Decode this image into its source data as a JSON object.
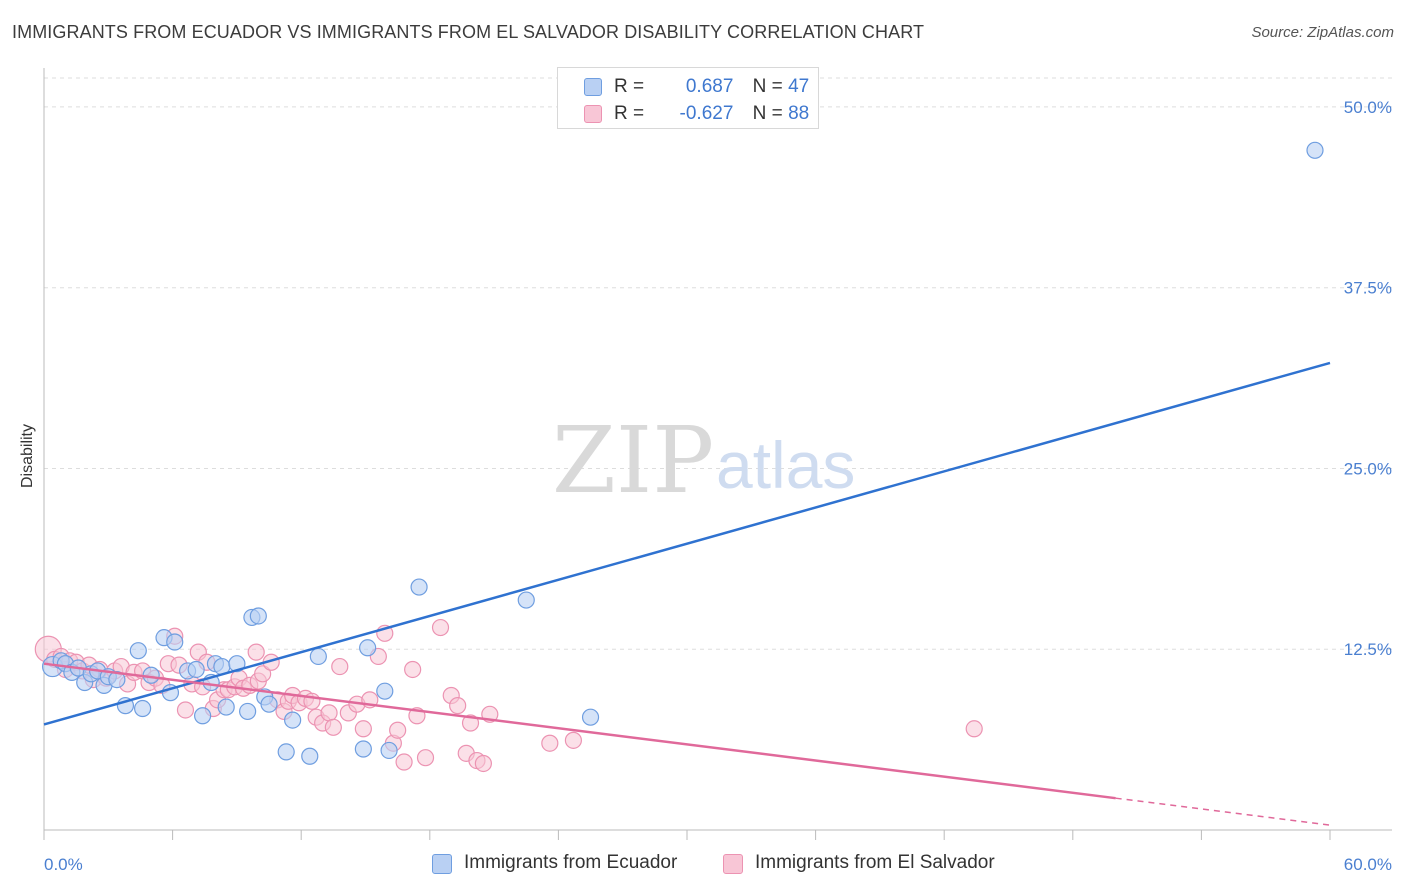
{
  "title": "IMMIGRANTS FROM ECUADOR VS IMMIGRANTS FROM EL SALVADOR DISABILITY CORRELATION CHART",
  "source": "Source: ZipAtlas.com",
  "watermark": {
    "zip": "ZIP",
    "atlas": "atlas"
  },
  "legend": {
    "r_label": "R =",
    "n_label": "N =",
    "rows": [
      {
        "r": "0.687",
        "n": "47"
      },
      {
        "r": "-0.627",
        "n": "88"
      }
    ]
  },
  "colors": {
    "ecuador_fill": "#b9d0f3",
    "ecuador_stroke": "#6f9ee0",
    "ecuador_line": "#2f72d0",
    "salvador_fill": "#f8c6d6",
    "salvador_stroke": "#ec93b2",
    "salvador_line": "#e0699a",
    "grid": "#dddddd",
    "tick_label": "#4a7fd0"
  },
  "chart_data": {
    "type": "scatter",
    "title": "IMMIGRANTS FROM ECUADOR VS IMMIGRANTS FROM EL SALVADOR DISABILITY CORRELATION CHART",
    "xlabel": "",
    "ylabel": "Disability",
    "xlim": [
      0,
      60
    ],
    "ylim": [
      0,
      52
    ],
    "x_ticks": [
      {
        "value": 0,
        "label": "0.0%"
      },
      {
        "value": 60,
        "label": "60.0%"
      }
    ],
    "y_ticks": [
      {
        "value": 12.5,
        "label": "12.5%"
      },
      {
        "value": 25,
        "label": "25.0%"
      },
      {
        "value": 37.5,
        "label": "37.5%"
      },
      {
        "value": 50,
        "label": "50.0%"
      }
    ],
    "grid": true,
    "legend_position": "top-center",
    "series": [
      {
        "name": "Immigrants from Ecuador",
        "r": 0.687,
        "n": 47,
        "trend": {
          "x0": 0,
          "y0": 7.3,
          "x1": 60,
          "y1": 32.3
        },
        "points": [
          [
            0.4,
            11.3
          ],
          [
            0.8,
            11.7
          ],
          [
            1.0,
            11.5
          ],
          [
            1.3,
            10.9
          ],
          [
            1.6,
            11.2
          ],
          [
            1.9,
            10.2
          ],
          [
            2.2,
            10.8
          ],
          [
            2.5,
            11.0
          ],
          [
            2.8,
            10.0
          ],
          [
            3.0,
            10.6
          ],
          [
            3.4,
            10.4
          ],
          [
            3.8,
            8.6
          ],
          [
            4.4,
            12.4
          ],
          [
            4.6,
            8.4
          ],
          [
            5.0,
            10.7
          ],
          [
            5.6,
            13.3
          ],
          [
            5.9,
            9.5
          ],
          [
            6.1,
            13.0
          ],
          [
            6.7,
            11.0
          ],
          [
            7.1,
            11.1
          ],
          [
            7.4,
            7.9
          ],
          [
            7.8,
            10.2
          ],
          [
            8.0,
            11.5
          ],
          [
            8.3,
            11.3
          ],
          [
            8.5,
            8.5
          ],
          [
            9.0,
            11.5
          ],
          [
            9.5,
            8.2
          ],
          [
            9.7,
            14.7
          ],
          [
            10.0,
            14.8
          ],
          [
            10.3,
            9.2
          ],
          [
            10.5,
            8.7
          ],
          [
            11.3,
            5.4
          ],
          [
            11.6,
            7.6
          ],
          [
            12.4,
            5.1
          ],
          [
            12.8,
            12.0
          ],
          [
            14.9,
            5.6
          ],
          [
            15.1,
            12.6
          ],
          [
            15.9,
            9.6
          ],
          [
            16.1,
            5.5
          ],
          [
            17.5,
            16.8
          ],
          [
            22.5,
            15.9
          ],
          [
            25.5,
            7.8
          ],
          [
            59.3,
            47.0
          ]
        ]
      },
      {
        "name": "Immigrants from El Salvador",
        "r": -0.627,
        "n": 88,
        "trend": {
          "x0": 0,
          "y0": 11.5,
          "x1": 50,
          "y1": 2.2
        },
        "points": [
          [
            0.2,
            12.5
          ],
          [
            0.5,
            11.8
          ],
          [
            0.8,
            12.0
          ],
          [
            1.0,
            11.1
          ],
          [
            1.2,
            11.7
          ],
          [
            1.5,
            11.6
          ],
          [
            1.8,
            11.0
          ],
          [
            2.1,
            11.4
          ],
          [
            2.3,
            10.4
          ],
          [
            2.6,
            11.1
          ],
          [
            2.9,
            10.5
          ],
          [
            3.3,
            11.0
          ],
          [
            3.6,
            11.3
          ],
          [
            3.9,
            10.1
          ],
          [
            4.2,
            10.9
          ],
          [
            4.6,
            11.0
          ],
          [
            4.9,
            10.2
          ],
          [
            5.2,
            10.5
          ],
          [
            5.5,
            10.0
          ],
          [
            5.8,
            11.5
          ],
          [
            6.1,
            13.4
          ],
          [
            6.3,
            11.4
          ],
          [
            6.6,
            8.3
          ],
          [
            6.9,
            10.1
          ],
          [
            7.2,
            12.3
          ],
          [
            7.4,
            9.9
          ],
          [
            7.6,
            11.6
          ],
          [
            7.9,
            8.4
          ],
          [
            8.1,
            9.0
          ],
          [
            8.4,
            9.7
          ],
          [
            8.6,
            9.7
          ],
          [
            8.9,
            9.9
          ],
          [
            9.1,
            10.5
          ],
          [
            9.3,
            9.8
          ],
          [
            9.6,
            10.0
          ],
          [
            9.9,
            12.3
          ],
          [
            10.0,
            10.3
          ],
          [
            10.2,
            10.8
          ],
          [
            10.6,
            11.6
          ],
          [
            10.9,
            9.0
          ],
          [
            11.2,
            8.2
          ],
          [
            11.4,
            8.9
          ],
          [
            11.6,
            9.3
          ],
          [
            11.9,
            8.8
          ],
          [
            12.2,
            9.1
          ],
          [
            12.5,
            8.9
          ],
          [
            12.7,
            7.8
          ],
          [
            13.0,
            7.4
          ],
          [
            13.3,
            8.1
          ],
          [
            13.5,
            7.1
          ],
          [
            13.8,
            11.3
          ],
          [
            14.2,
            8.1
          ],
          [
            14.6,
            8.7
          ],
          [
            14.9,
            7.0
          ],
          [
            15.2,
            9.0
          ],
          [
            15.6,
            12.0
          ],
          [
            15.9,
            13.6
          ],
          [
            16.3,
            6.0
          ],
          [
            16.5,
            6.9
          ],
          [
            16.8,
            4.7
          ],
          [
            17.2,
            11.1
          ],
          [
            17.4,
            7.9
          ],
          [
            17.8,
            5.0
          ],
          [
            18.5,
            14.0
          ],
          [
            19.0,
            9.3
          ],
          [
            19.3,
            8.6
          ],
          [
            19.7,
            5.3
          ],
          [
            19.9,
            7.4
          ],
          [
            20.2,
            4.8
          ],
          [
            20.5,
            4.6
          ],
          [
            20.8,
            8.0
          ],
          [
            23.6,
            6.0
          ],
          [
            24.7,
            6.2
          ],
          [
            43.4,
            7.0
          ]
        ]
      }
    ]
  },
  "bottom_legend": [
    "Immigrants from Ecuador",
    "Immigrants from El Salvador"
  ]
}
